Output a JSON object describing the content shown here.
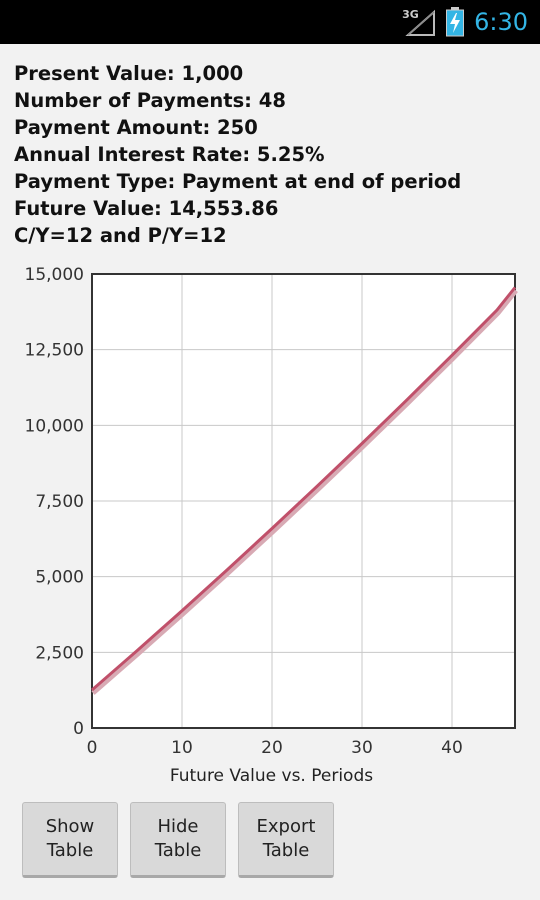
{
  "status_bar": {
    "network": "3G",
    "time": "6:30",
    "icons": [
      "signal-icon",
      "battery-charging-icon"
    ],
    "time_color": "#33b5e5"
  },
  "info": {
    "lines": [
      "Present Value: 1,000",
      "Number of Payments: 48",
      "Payment Amount: 250",
      "Annual Interest Rate: 5.25%",
      "Payment Type: Payment at end of period",
      "Future Value: 14,553.86",
      "C/Y=12 and P/Y=12"
    ]
  },
  "chart_data": {
    "type": "line",
    "title": "",
    "xlabel": "Future Value vs. Periods",
    "ylabel": "",
    "xlim": [
      0,
      47
    ],
    "ylim": [
      0,
      15000
    ],
    "xticks": [
      0,
      10,
      20,
      30,
      40
    ],
    "yticks": [
      0,
      2500,
      5000,
      7500,
      10000,
      12500,
      15000
    ],
    "xtick_labels": [
      "0",
      "10",
      "20",
      "30",
      "40"
    ],
    "ytick_labels": [
      "0",
      "2,500",
      "5,000",
      "7,500",
      "10,000",
      "12,500",
      "15,000"
    ],
    "grid": true,
    "legend": "none",
    "line_color": "#c0506a",
    "series": [
      {
        "x": [
          0,
          5,
          10,
          15,
          20,
          25,
          30,
          35,
          40,
          45,
          47
        ],
        "values": [
          1254.38,
          2555,
          3875,
          5220,
          6590,
          7985,
          9400,
          10845,
          12315,
          13810,
          14553.86
        ]
      }
    ]
  },
  "buttons": [
    {
      "label": "Show\nTable"
    },
    {
      "label": "Hide\nTable"
    },
    {
      "label": "Export\nTable"
    }
  ]
}
